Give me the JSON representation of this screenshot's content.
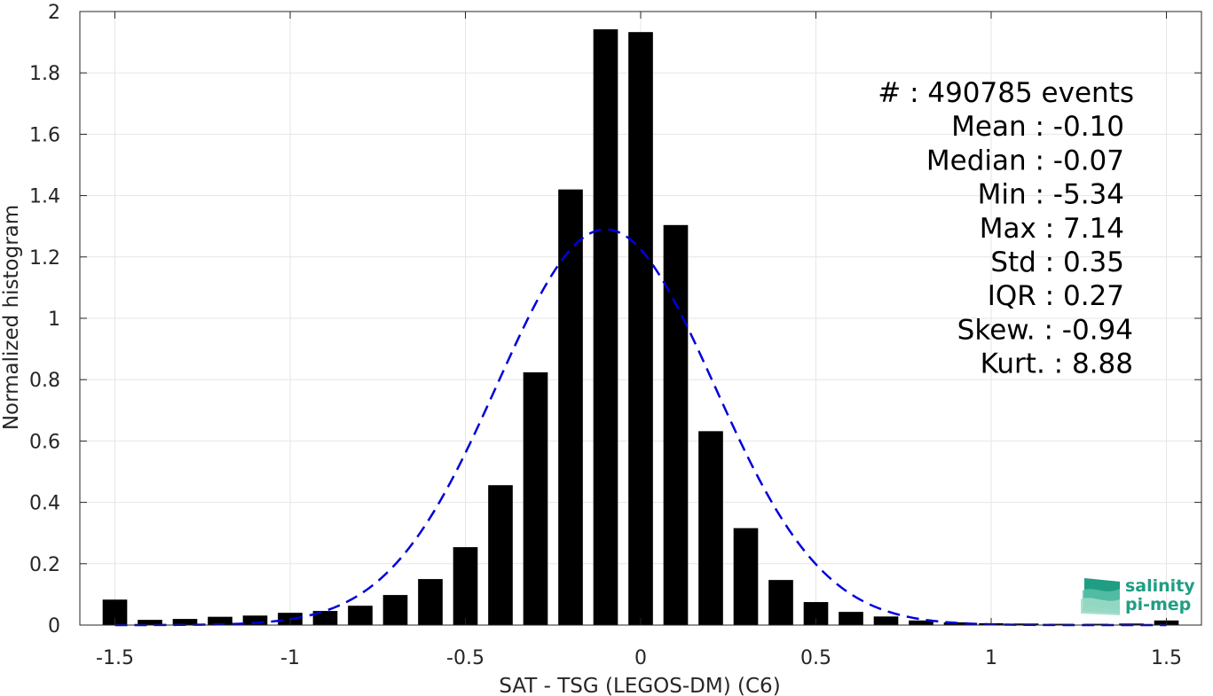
{
  "chart_data": {
    "type": "bar",
    "xlabel": "SAT - TSG (LEGOS-DM) (C6)",
    "ylabel": "Normalized histogram",
    "xlim": [
      -1.6,
      1.6
    ],
    "ylim": [
      0,
      2
    ],
    "grid": true,
    "x_ticks": [
      -1.5,
      -1,
      -0.5,
      0,
      0.5,
      1,
      1.5
    ],
    "x_tick_labels": [
      "-1.5",
      "-1",
      "-0.5",
      "0",
      "0.5",
      "1",
      "1.5"
    ],
    "y_ticks": [
      0,
      0.2,
      0.4,
      0.6,
      0.8,
      1,
      1.2,
      1.4,
      1.6,
      1.8,
      2
    ],
    "y_tick_labels": [
      "0",
      "0.2",
      "0.4",
      "0.6",
      "0.8",
      "1",
      "1.2",
      "1.4",
      "1.6",
      "1.8",
      "2"
    ],
    "bar_color": "#000000",
    "bar_width": 0.07,
    "x": [
      -1.5,
      -1.4,
      -1.3,
      -1.2,
      -1.1,
      -1.0,
      -0.9,
      -0.8,
      -0.7,
      -0.6,
      -0.5,
      -0.4,
      -0.3,
      -0.2,
      -0.1,
      0.0,
      0.1,
      0.2,
      0.3,
      0.4,
      0.5,
      0.6,
      0.7,
      0.8,
      0.9,
      1.0,
      1.1,
      1.2,
      1.3,
      1.4,
      1.5
    ],
    "values": [
      0.083,
      0.017,
      0.02,
      0.027,
      0.031,
      0.04,
      0.046,
      0.063,
      0.098,
      0.15,
      0.254,
      0.456,
      0.824,
      1.42,
      1.942,
      1.933,
      1.304,
      0.632,
      0.316,
      0.147,
      0.075,
      0.043,
      0.028,
      0.015,
      0.009,
      0.006,
      0.005,
      0.004,
      0.004,
      0.005,
      0.015
    ],
    "fit": {
      "color": "#0000dd",
      "style": "dashed",
      "mean": -0.1,
      "std": 0.31,
      "peak": 1.29
    },
    "stats": [
      "#  : 490785 events",
      "Mean : -0.10",
      "Median : -0.07",
      "Min : -5.34",
      "Max : 7.14",
      "Std : 0.35",
      "IQR : 0.27",
      "Skew. : -0.94",
      "Kurt. : 8.88"
    ]
  },
  "logo": {
    "line1": "salinity",
    "line2": "pi-mep",
    "color": "#1f9e84"
  }
}
